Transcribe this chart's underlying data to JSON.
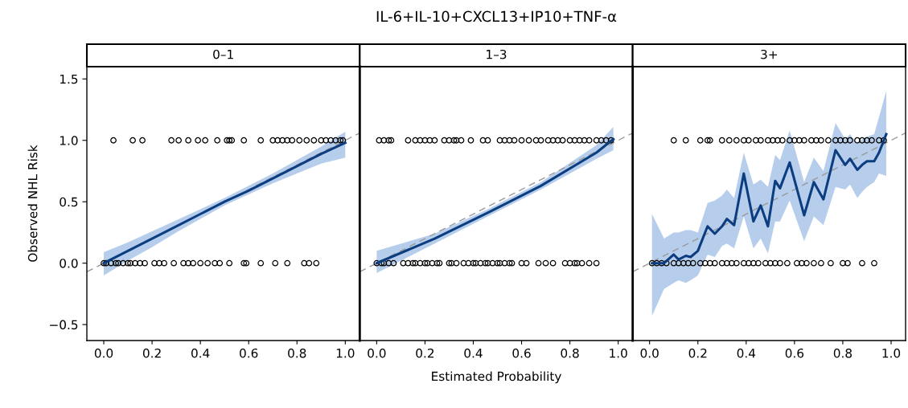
{
  "chart_data": [
    {
      "type": "scatter",
      "subtitle": "0–1",
      "ylabel": "Observed NHL Risk",
      "grid": false,
      "xlim": [
        -0.07,
        1.06
      ],
      "ylim": [
        -0.63,
        1.6
      ],
      "xticks": [
        {
          "value": 0,
          "label": "0.0"
        },
        {
          "value": 0.2,
          "label": "0.2"
        },
        {
          "value": 0.4,
          "label": "0.4"
        },
        {
          "value": 0.6,
          "label": "0.6"
        },
        {
          "value": 0.8,
          "label": "0.8"
        },
        {
          "value": 1,
          "label": "1.0"
        }
      ],
      "yticks": [
        {
          "value": -0.5,
          "label": "−0.5"
        },
        {
          "value": 0,
          "label": "0.0"
        },
        {
          "value": 0.5,
          "label": "0.5"
        },
        {
          "value": 1,
          "label": "1.0"
        },
        {
          "value": 1.5,
          "label": "1.5"
        }
      ],
      "series": [
        {
          "type": "line",
          "color": "#999999",
          "line_style": "dashed",
          "marker": "none",
          "x": [
            -0.07,
            1.06
          ],
          "values": [
            -0.07,
            1.06
          ]
        },
        {
          "type": "scatter",
          "color": "#000000",
          "marker": "circle",
          "x": [
            0.04,
            0.12,
            0.16,
            0.28,
            0.31,
            0.35,
            0.39,
            0.42,
            0.47,
            0.51,
            0.52,
            0.53,
            0.58,
            0.65,
            0.7,
            0.72,
            0.74,
            0.76,
            0.78,
            0.81,
            0.84,
            0.87,
            0.9,
            0.92,
            0.94,
            0.96,
            0.98,
            0.99
          ],
          "values": [
            1,
            1,
            1,
            1,
            1,
            1,
            1,
            1,
            1,
            1,
            1,
            1,
            1,
            1,
            1,
            1,
            1,
            1,
            1,
            1,
            1,
            1,
            1,
            1,
            1,
            1,
            1,
            1
          ]
        },
        {
          "type": "scatter",
          "color": "#000000",
          "marker": "circle",
          "x": [
            0.0,
            0.01,
            0.03,
            0.05,
            0.06,
            0.08,
            0.1,
            0.11,
            0.13,
            0.15,
            0.17,
            0.21,
            0.23,
            0.25,
            0.29,
            0.33,
            0.35,
            0.37,
            0.4,
            0.43,
            0.46,
            0.48,
            0.52,
            0.58,
            0.59,
            0.65,
            0.71,
            0.76,
            0.83,
            0.85,
            0.88
          ],
          "values": [
            0,
            0,
            0,
            0,
            0,
            0,
            0,
            0,
            0,
            0,
            0,
            0,
            0,
            0,
            0,
            0,
            0,
            0,
            0,
            0,
            0,
            0,
            0,
            0,
            0,
            0,
            0,
            0,
            0,
            0,
            0
          ]
        },
        {
          "type": "line",
          "color": "#0b3d80",
          "line_style": "solid",
          "marker": "none",
          "x": [
            0.0,
            0.1,
            0.2,
            0.3,
            0.4,
            0.5,
            0.6,
            0.7,
            0.8,
            0.9,
            1.0
          ],
          "values": [
            0.0,
            0.1,
            0.2,
            0.3,
            0.4,
            0.5,
            0.59,
            0.69,
            0.79,
            0.89,
            0.98
          ],
          "lower": [
            -0.1,
            0.02,
            0.13,
            0.25,
            0.36,
            0.47,
            0.56,
            0.65,
            0.73,
            0.81,
            0.86
          ],
          "upper": [
            0.09,
            0.17,
            0.26,
            0.35,
            0.44,
            0.53,
            0.63,
            0.73,
            0.84,
            0.95,
            1.07
          ]
        }
      ]
    },
    {
      "type": "scatter",
      "title": "IL-6+IL-10+CXCL13+IP10+TNF-α",
      "subtitle": "1–3",
      "xlabel": "Estimated Probability",
      "grid": false,
      "tick_labels": "x",
      "xlim": [
        -0.07,
        1.06
      ],
      "ylim": [
        -0.63,
        1.6
      ],
      "xticks": [
        {
          "value": 0,
          "label": "0.0"
        },
        {
          "value": 0.2,
          "label": "0.2"
        },
        {
          "value": 0.4,
          "label": "0.4"
        },
        {
          "value": 0.6,
          "label": "0.6"
        },
        {
          "value": 0.8,
          "label": "0.8"
        },
        {
          "value": 1,
          "label": "1.0"
        }
      ],
      "yticks": [
        {
          "value": -0.5,
          "label": null
        },
        {
          "value": 0,
          "label": null
        },
        {
          "value": 0.5,
          "label": null
        },
        {
          "value": 1,
          "label": null
        },
        {
          "value": 1.5,
          "label": null
        }
      ],
      "series": [
        {
          "type": "line",
          "color": "#999999",
          "line_style": "dashed",
          "marker": "none",
          "x": [
            -0.07,
            1.06
          ],
          "values": [
            -0.07,
            1.06
          ]
        },
        {
          "type": "scatter",
          "color": "#000000",
          "marker": "circle",
          "x": [
            0.01,
            0.03,
            0.05,
            0.06,
            0.13,
            0.16,
            0.18,
            0.2,
            0.22,
            0.24,
            0.28,
            0.3,
            0.32,
            0.33,
            0.35,
            0.39,
            0.44,
            0.46,
            0.51,
            0.53,
            0.55,
            0.57,
            0.6,
            0.63,
            0.66,
            0.68,
            0.71,
            0.73,
            0.75,
            0.77,
            0.8,
            0.82,
            0.84,
            0.86,
            0.88,
            0.91,
            0.93,
            0.95,
            0.97
          ],
          "values": [
            1,
            1,
            1,
            1,
            1,
            1,
            1,
            1,
            1,
            1,
            1,
            1,
            1,
            1,
            1,
            1,
            1,
            1,
            1,
            1,
            1,
            1,
            1,
            1,
            1,
            1,
            1,
            1,
            1,
            1,
            1,
            1,
            1,
            1,
            1,
            1,
            1,
            1,
            1
          ]
        },
        {
          "type": "scatter",
          "color": "#000000",
          "marker": "circle",
          "x": [
            0.0,
            0.02,
            0.03,
            0.05,
            0.07,
            0.11,
            0.13,
            0.15,
            0.16,
            0.18,
            0.2,
            0.21,
            0.23,
            0.25,
            0.26,
            0.3,
            0.31,
            0.33,
            0.36,
            0.38,
            0.4,
            0.41,
            0.43,
            0.45,
            0.46,
            0.48,
            0.5,
            0.51,
            0.53,
            0.55,
            0.56,
            0.6,
            0.62,
            0.67,
            0.7,
            0.73,
            0.78,
            0.8,
            0.82,
            0.83,
            0.85,
            0.88,
            0.91
          ],
          "values": [
            0,
            0,
            0,
            0,
            0,
            0,
            0,
            0,
            0,
            0,
            0,
            0,
            0,
            0,
            0,
            0,
            0,
            0,
            0,
            0,
            0,
            0,
            0,
            0,
            0,
            0,
            0,
            0,
            0,
            0,
            0,
            0,
            0,
            0,
            0,
            0,
            0,
            0,
            0,
            0,
            0,
            0,
            0
          ]
        },
        {
          "type": "line",
          "color": "#0b3d80",
          "line_style": "solid",
          "marker": "none",
          "x": [
            0.0,
            0.24,
            0.46,
            0.68,
            0.91,
            0.98
          ],
          "values": [
            0.0,
            0.2,
            0.41,
            0.63,
            0.9,
            1.01
          ],
          "lower": [
            -0.08,
            0.16,
            0.38,
            0.6,
            0.85,
            0.92
          ],
          "upper": [
            0.1,
            0.24,
            0.44,
            0.66,
            0.96,
            1.11
          ]
        }
      ]
    },
    {
      "type": "scatter",
      "subtitle": "3+",
      "grid": false,
      "tick_labels": "x",
      "xlim": [
        -0.07,
        1.06
      ],
      "ylim": [
        -0.63,
        1.6
      ],
      "xticks": [
        {
          "value": 0,
          "label": "0.0"
        },
        {
          "value": 0.2,
          "label": "0.2"
        },
        {
          "value": 0.4,
          "label": "0.4"
        },
        {
          "value": 0.6,
          "label": "0.6"
        },
        {
          "value": 0.8,
          "label": "0.8"
        },
        {
          "value": 1,
          "label": "1.0"
        }
      ],
      "yticks": [
        {
          "value": -0.5,
          "label": null
        },
        {
          "value": 0,
          "label": null
        },
        {
          "value": 0.5,
          "label": null
        },
        {
          "value": 1,
          "label": null
        },
        {
          "value": 1.5,
          "label": null
        }
      ],
      "series": [
        {
          "type": "line",
          "color": "#999999",
          "line_style": "dashed",
          "marker": "none",
          "x": [
            -0.07,
            1.06
          ],
          "values": [
            -0.07,
            1.06
          ]
        },
        {
          "type": "scatter",
          "color": "#000000",
          "marker": "circle",
          "x": [
            0.1,
            0.15,
            0.21,
            0.24,
            0.25,
            0.3,
            0.33,
            0.36,
            0.39,
            0.41,
            0.44,
            0.46,
            0.49,
            0.51,
            0.53,
            0.55,
            0.58,
            0.6,
            0.62,
            0.64,
            0.67,
            0.69,
            0.71,
            0.74,
            0.77,
            0.79,
            0.81,
            0.83,
            0.86,
            0.88,
            0.9,
            0.92,
            0.95,
            0.97
          ],
          "values": [
            1,
            1,
            1,
            1,
            1,
            1,
            1,
            1,
            1,
            1,
            1,
            1,
            1,
            1,
            1,
            1,
            1,
            1,
            1,
            1,
            1,
            1,
            1,
            1,
            1,
            1,
            1,
            1,
            1,
            1,
            1,
            1,
            1,
            1
          ]
        },
        {
          "type": "scatter",
          "color": "#000000",
          "marker": "circle",
          "x": [
            0.01,
            0.03,
            0.05,
            0.07,
            0.1,
            0.12,
            0.14,
            0.16,
            0.18,
            0.21,
            0.23,
            0.25,
            0.27,
            0.3,
            0.32,
            0.34,
            0.36,
            0.39,
            0.41,
            0.43,
            0.45,
            0.48,
            0.5,
            0.52,
            0.54,
            0.57,
            0.61,
            0.63,
            0.65,
            0.68,
            0.71,
            0.75,
            0.8,
            0.82,
            0.88,
            0.93
          ],
          "values": [
            0,
            0,
            0,
            0,
            0,
            0,
            0,
            0,
            0,
            0,
            0,
            0,
            0,
            0,
            0,
            0,
            0,
            0,
            0,
            0,
            0,
            0,
            0,
            0,
            0,
            0,
            0,
            0,
            0,
            0,
            0,
            0,
            0,
            0,
            0,
            0
          ]
        },
        {
          "type": "line",
          "color": "#0b3d80",
          "line_style": "solid",
          "marker": "none",
          "x": [
            0.01,
            0.06,
            0.1,
            0.12,
            0.15,
            0.17,
            0.2,
            0.24,
            0.27,
            0.3,
            0.32,
            0.35,
            0.39,
            0.43,
            0.46,
            0.49,
            0.52,
            0.54,
            0.58,
            0.64,
            0.68,
            0.72,
            0.77,
            0.81,
            0.83,
            0.86,
            0.88,
            0.9,
            0.93,
            0.95,
            0.98
          ],
          "values": [
            0.0,
            0.0,
            0.07,
            0.03,
            0.06,
            0.05,
            0.1,
            0.3,
            0.24,
            0.3,
            0.36,
            0.31,
            0.73,
            0.34,
            0.47,
            0.3,
            0.67,
            0.61,
            0.82,
            0.39,
            0.66,
            0.52,
            0.92,
            0.8,
            0.85,
            0.76,
            0.8,
            0.83,
            0.83,
            0.9,
            1.05
          ],
          "lower": [
            -0.43,
            -0.21,
            -0.16,
            -0.14,
            -0.16,
            -0.14,
            -0.1,
            0.07,
            0.05,
            0.14,
            0.16,
            0.12,
            0.38,
            0.12,
            0.2,
            0.08,
            0.34,
            0.34,
            0.51,
            0.18,
            0.38,
            0.31,
            0.62,
            0.6,
            0.64,
            0.53,
            0.58,
            0.62,
            0.66,
            0.73,
            0.71
          ],
          "upper": [
            0.4,
            0.2,
            0.25,
            0.25,
            0.27,
            0.27,
            0.25,
            0.49,
            0.51,
            0.55,
            0.6,
            0.53,
            0.9,
            0.64,
            0.68,
            0.62,
            0.88,
            0.84,
            1.08,
            0.66,
            0.86,
            0.75,
            1.14,
            1.01,
            1.05,
            0.97,
            1.01,
            1.03,
            1.05,
            1.19,
            1.4
          ]
        }
      ]
    }
  ]
}
